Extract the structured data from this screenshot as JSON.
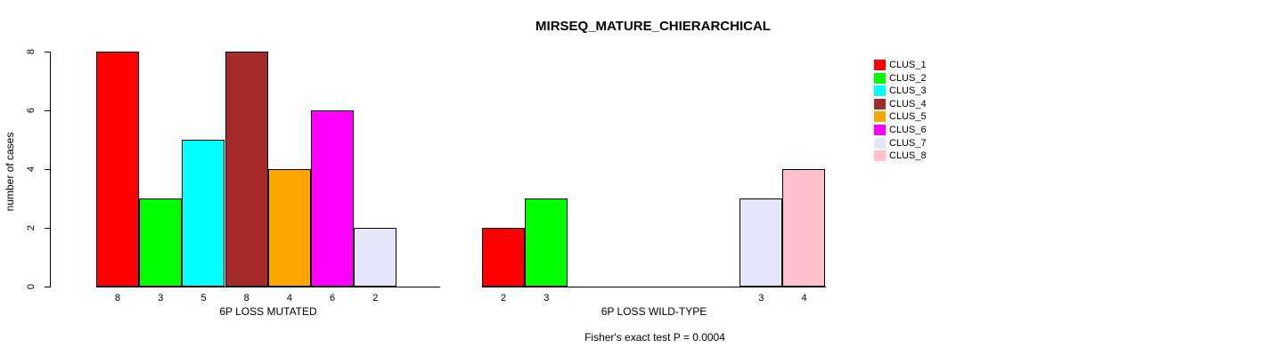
{
  "chart_data": {
    "type": "bar",
    "title": "MIRSEQ_MATURE_CHIERARCHICAL",
    "ylabel": "number of cases",
    "ylim": [
      0,
      8
    ],
    "yticks": [
      0,
      2,
      4,
      6,
      8
    ],
    "grid": false,
    "legend_position": "right",
    "legend": [
      {
        "name": "CLUS_1",
        "color": "#FF0000"
      },
      {
        "name": "CLUS_2",
        "color": "#00FF00"
      },
      {
        "name": "CLUS_3",
        "color": "#00FFFF"
      },
      {
        "name": "CLUS_4",
        "color": "#A52A2A"
      },
      {
        "name": "CLUS_5",
        "color": "#FFA500"
      },
      {
        "name": "CLUS_6",
        "color": "#FF00FF"
      },
      {
        "name": "CLUS_7",
        "color": "#E6E6FA"
      },
      {
        "name": "CLUS_8",
        "color": "#FFC0CB"
      }
    ],
    "groups": [
      {
        "label": "6P LOSS MUTATED",
        "values": [
          8,
          3,
          5,
          8,
          4,
          6,
          2,
          0
        ]
      },
      {
        "label": "6P LOSS WILD-TYPE",
        "values": [
          2,
          3,
          0,
          0,
          0,
          0,
          3,
          4
        ]
      }
    ],
    "annotation": "Fisher's exact test P = 0.0004"
  }
}
